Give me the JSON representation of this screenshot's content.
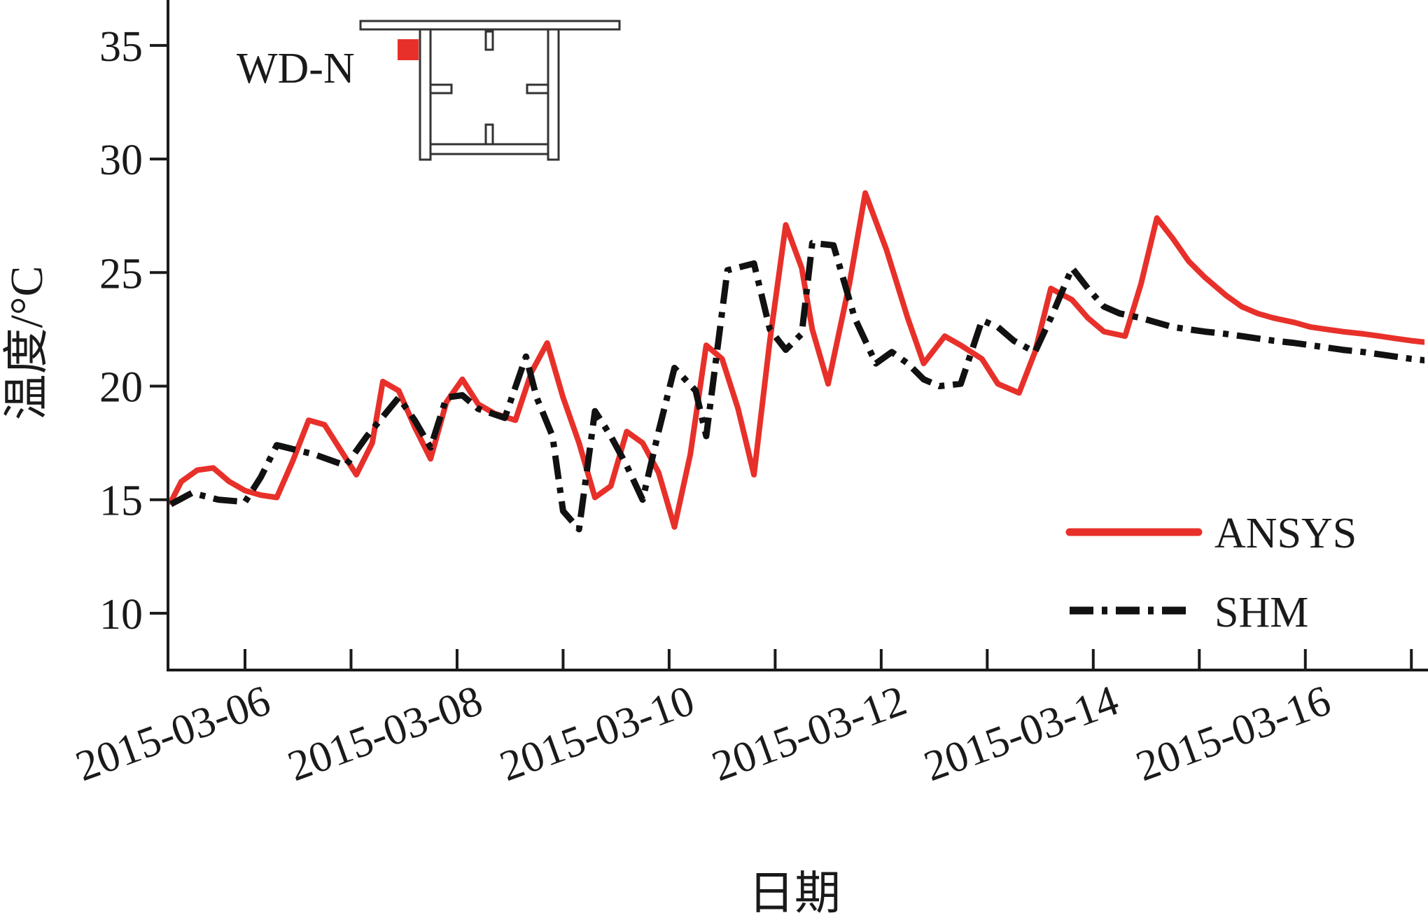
{
  "chart_data": {
    "type": "line",
    "xlabel": "日期",
    "ylabel": "温度/°C",
    "ylim": [
      7.5,
      37
    ],
    "xlim": [
      0,
      11.85
    ],
    "y_ticks": [
      10,
      15,
      20,
      25,
      30,
      35
    ],
    "x_ticks": [
      {
        "x": 0,
        "label": "2015-03-06"
      },
      {
        "x": 2,
        "label": "2015-03-08"
      },
      {
        "x": 4,
        "label": "2015-03-10"
      },
      {
        "x": 6,
        "label": "2015-03-12"
      },
      {
        "x": 8,
        "label": "2015-03-14"
      },
      {
        "x": 10,
        "label": "2015-03-16"
      }
    ],
    "x_minor_ticks": [
      1,
      3,
      5,
      7,
      9,
      11
    ],
    "grid": false,
    "legend_position": "bottom-right",
    "inset": {
      "label": "WD-N",
      "marker_color": "#e8302a"
    },
    "series": [
      {
        "name": "ANSYS",
        "color": "#e8302a",
        "style": "solid",
        "x": [
          -0.7,
          -0.6,
          -0.45,
          -0.3,
          -0.15,
          0.0,
          0.15,
          0.3,
          0.45,
          0.6,
          0.75,
          0.9,
          1.05,
          1.2,
          1.3,
          1.45,
          1.6,
          1.75,
          1.9,
          2.05,
          2.2,
          2.35,
          2.55,
          2.7,
          2.85,
          3.0,
          3.15,
          3.3,
          3.45,
          3.6,
          3.75,
          3.9,
          4.05,
          4.2,
          4.35,
          4.5,
          4.65,
          4.8,
          4.95,
          5.1,
          5.25,
          5.35,
          5.5,
          5.7,
          5.85,
          6.05,
          6.25,
          6.4,
          6.6,
          6.75,
          6.95,
          7.1,
          7.3,
          7.45,
          7.6,
          7.8,
          7.95,
          8.1,
          8.3,
          8.45,
          8.6,
          8.75,
          8.9,
          9.05,
          9.25,
          9.4,
          9.55,
          9.7,
          9.9,
          10.05,
          10.2,
          10.35,
          10.55,
          10.7,
          10.85,
          11.0,
          11.2,
          11.35,
          11.5,
          11.65,
          11.85
        ],
        "y": [
          14.9,
          15.8,
          16.3,
          16.4,
          15.8,
          15.4,
          15.2,
          15.1,
          16.7,
          18.5,
          18.3,
          17.2,
          16.1,
          17.5,
          20.2,
          19.8,
          18.2,
          16.8,
          19.3,
          20.3,
          19.2,
          18.8,
          18.5,
          20.6,
          21.9,
          19.5,
          17.5,
          15.1,
          15.6,
          18.0,
          17.5,
          16.2,
          13.8,
          17.0,
          21.8,
          21.2,
          19.0,
          16.1,
          22.0,
          27.1,
          25.2,
          22.5,
          20.1,
          24.5,
          28.5,
          26.0,
          23.0,
          21.0,
          22.2,
          21.8,
          21.2,
          20.1,
          19.7,
          21.5,
          24.3,
          23.8,
          23.0,
          22.4,
          22.2,
          24.5,
          27.4,
          26.5,
          25.5,
          24.8,
          24.0,
          23.5,
          23.2,
          23.0,
          22.8,
          22.6,
          22.5,
          22.4,
          22.3,
          22.2,
          22.1,
          22.0,
          21.9,
          21.8,
          21.7,
          21.6,
          21.5
        ]
      },
      {
        "name": "SHM",
        "color": "#111111",
        "style": "dash-dot",
        "x": [
          -0.7,
          -0.5,
          -0.25,
          0.0,
          0.15,
          0.3,
          0.65,
          0.95,
          1.15,
          1.45,
          1.6,
          1.75,
          1.9,
          2.05,
          2.2,
          2.45,
          2.65,
          2.75,
          2.9,
          3.0,
          3.15,
          3.3,
          3.45,
          3.6,
          3.75,
          3.9,
          4.05,
          4.25,
          4.35,
          4.55,
          4.8,
          4.95,
          5.1,
          5.25,
          5.35,
          5.55,
          5.75,
          5.95,
          6.1,
          6.25,
          6.4,
          6.55,
          6.75,
          6.95,
          7.1,
          7.25,
          7.45,
          7.6,
          7.8,
          7.95,
          8.1,
          8.25,
          8.45,
          8.6,
          8.75,
          8.9,
          9.05,
          9.25,
          9.4,
          9.55,
          9.7,
          9.9,
          10.05,
          10.2,
          10.35,
          10.55,
          10.7,
          10.85,
          11.0,
          11.2,
          11.35,
          11.5,
          11.65,
          11.85
        ],
        "y": [
          14.8,
          15.3,
          15.0,
          14.9,
          16.0,
          17.4,
          17.0,
          16.5,
          17.8,
          19.5,
          18.5,
          17.3,
          19.5,
          19.6,
          19.0,
          18.6,
          21.3,
          19.5,
          17.8,
          14.5,
          13.7,
          18.9,
          17.8,
          16.5,
          15.0,
          18.0,
          20.8,
          19.8,
          17.8,
          25.1,
          25.4,
          22.5,
          21.6,
          22.3,
          26.3,
          26.2,
          23.0,
          21.0,
          21.5,
          21.0,
          20.3,
          20.0,
          20.1,
          22.9,
          22.6,
          22.0,
          21.5,
          23.0,
          25.2,
          24.3,
          23.5,
          23.2,
          23.0,
          22.8,
          22.6,
          22.5,
          22.4,
          22.3,
          22.2,
          22.1,
          22.0,
          21.9,
          21.8,
          21.7,
          21.6,
          21.5,
          21.4,
          21.3,
          21.2,
          21.1,
          21.0,
          20.9,
          20.8,
          20.7
        ]
      }
    ]
  }
}
